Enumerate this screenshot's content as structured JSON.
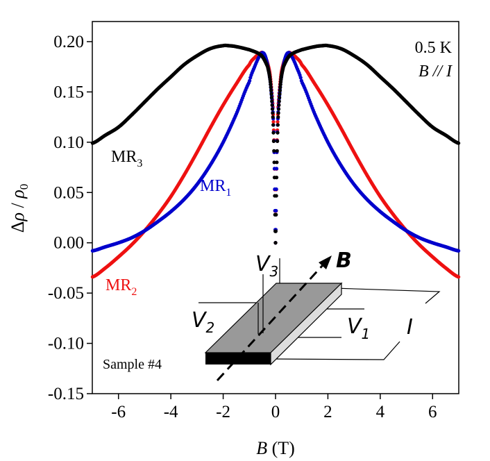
{
  "chart_data": {
    "type": "line",
    "title": "",
    "xlabel": "B (T)",
    "ylabel": "Δρ / ρ0",
    "xlim": [
      -7,
      7
    ],
    "ylim": [
      -0.15,
      0.22
    ],
    "x_ticks": [
      "-6",
      "-4",
      "-2",
      "0",
      "2",
      "4",
      "6"
    ],
    "x_tick_values": [
      -6,
      -4,
      -2,
      0,
      2,
      4,
      6
    ],
    "y_ticks": [
      "0.20",
      "0.15",
      "0.10",
      "0.05",
      "0.00",
      "-0.05",
      "-0.10",
      "-0.15"
    ],
    "y_tick_values": [
      0.2,
      0.15,
      0.1,
      0.05,
      0.0,
      -0.05,
      -0.1,
      -0.15
    ],
    "grid": false,
    "series": [
      {
        "name": "MR1",
        "label_main": "MR",
        "label_sub": "1",
        "color": "#0000cc",
        "x": [
          0,
          0.05,
          0.1,
          0.2,
          0.3,
          0.4,
          0.5,
          0.6,
          0.8,
          1.0,
          1.5,
          2.0,
          2.5,
          3.0,
          3.5,
          4.0,
          4.5,
          5.0,
          5.5,
          6.0,
          6.5,
          7.0
        ],
        "values": [
          0.0,
          0.09,
          0.13,
          0.16,
          0.176,
          0.186,
          0.189,
          0.186,
          0.175,
          0.16,
          0.128,
          0.1,
          0.077,
          0.058,
          0.043,
          0.031,
          0.021,
          0.012,
          0.005,
          0.0,
          -0.004,
          -0.008
        ]
      },
      {
        "name": "MR2",
        "label_main": "MR",
        "label_sub": "2",
        "color": "#ee1111",
        "x": [
          0,
          0.05,
          0.1,
          0.2,
          0.3,
          0.4,
          0.5,
          0.6,
          0.8,
          1.0,
          1.5,
          2.0,
          2.5,
          3.0,
          3.5,
          4.0,
          4.5,
          5.0,
          5.5,
          6.0,
          6.5,
          7.0
        ],
        "values": [
          0.0,
          0.09,
          0.135,
          0.165,
          0.178,
          0.185,
          0.189,
          0.188,
          0.184,
          0.177,
          0.158,
          0.137,
          0.114,
          0.09,
          0.067,
          0.046,
          0.028,
          0.012,
          -0.002,
          -0.014,
          -0.025,
          -0.034
        ]
      },
      {
        "name": "MR3",
        "label_main": "MR",
        "label_sub": "3",
        "color": "#000000",
        "x": [
          0,
          0.05,
          0.1,
          0.2,
          0.3,
          0.5,
          0.7,
          1.0,
          1.5,
          1.8,
          2.0,
          2.5,
          3.0,
          3.5,
          4.0,
          4.5,
          5.0,
          5.5,
          6.0,
          6.5,
          7.0
        ],
        "values": [
          0.0,
          0.08,
          0.125,
          0.16,
          0.175,
          0.185,
          0.189,
          0.192,
          0.195,
          0.196,
          0.196,
          0.193,
          0.186,
          0.177,
          0.165,
          0.153,
          0.14,
          0.127,
          0.115,
          0.107,
          0.099
        ]
      }
    ],
    "annotations": {
      "temperature": "0.5 K",
      "field_orientation": "B // I",
      "sample": "Sample #4"
    },
    "inset": {
      "description": "device schematic",
      "labels": {
        "v1": "V",
        "v1_sub": "1",
        "v2": "V",
        "v2_sub": "2",
        "v3": "V",
        "v3_sub": "3",
        "current": "I",
        "field": "B"
      }
    }
  }
}
